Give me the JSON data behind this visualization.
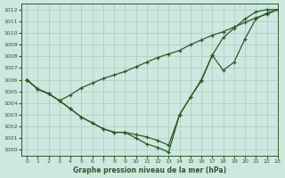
{
  "title": "Graphe pression niveau de la mer (hPa)",
  "background_color": "#cce8e0",
  "grid_color": "#aaccbb",
  "line_color": "#2d5a27",
  "xlim": [
    -0.5,
    23
  ],
  "ylim": [
    999.5,
    1012.5
  ],
  "yticks": [
    1000,
    1001,
    1002,
    1003,
    1004,
    1005,
    1006,
    1007,
    1008,
    1009,
    1010,
    1011,
    1012
  ],
  "xticks": [
    0,
    1,
    2,
    3,
    4,
    5,
    6,
    7,
    8,
    9,
    10,
    11,
    12,
    13,
    14,
    15,
    16,
    17,
    18,
    19,
    20,
    21,
    22,
    23
  ],
  "x": [
    0,
    1,
    2,
    3,
    4,
    5,
    6,
    7,
    8,
    9,
    10,
    11,
    12,
    13,
    14,
    15,
    16,
    17,
    18,
    19,
    20,
    21,
    22,
    23
  ],
  "series1": [
    1006.0,
    1005.2,
    1004.8,
    1004.2,
    1004.7,
    1005.3,
    1005.7,
    1006.1,
    1006.4,
    1006.7,
    1007.1,
    1007.5,
    1007.9,
    1008.2,
    1008.5,
    1009.0,
    1009.4,
    1009.8,
    1010.1,
    1010.5,
    1010.9,
    1011.3,
    1011.6,
    1012.0
  ],
  "series2": [
    1006.0,
    1005.2,
    1004.8,
    1004.2,
    1003.5,
    1002.8,
    1002.3,
    1001.8,
    1001.5,
    1001.5,
    1001.3,
    1001.1,
    1000.8,
    1000.4,
    1003.0,
    1004.5,
    1006.0,
    1008.1,
    1006.8,
    1007.5,
    1009.5,
    1011.2,
    1011.7,
    1012.0
  ],
  "series3": [
    1006.0,
    1005.2,
    1004.8,
    1004.2,
    1003.5,
    1002.8,
    1002.3,
    1001.8,
    1001.5,
    1001.5,
    1001.0,
    1000.5,
    1000.2,
    999.8,
    1003.0,
    1004.5,
    1005.9,
    1008.1,
    1009.6,
    1010.4,
    1011.2,
    1011.8,
    1012.0,
    1012.0
  ]
}
